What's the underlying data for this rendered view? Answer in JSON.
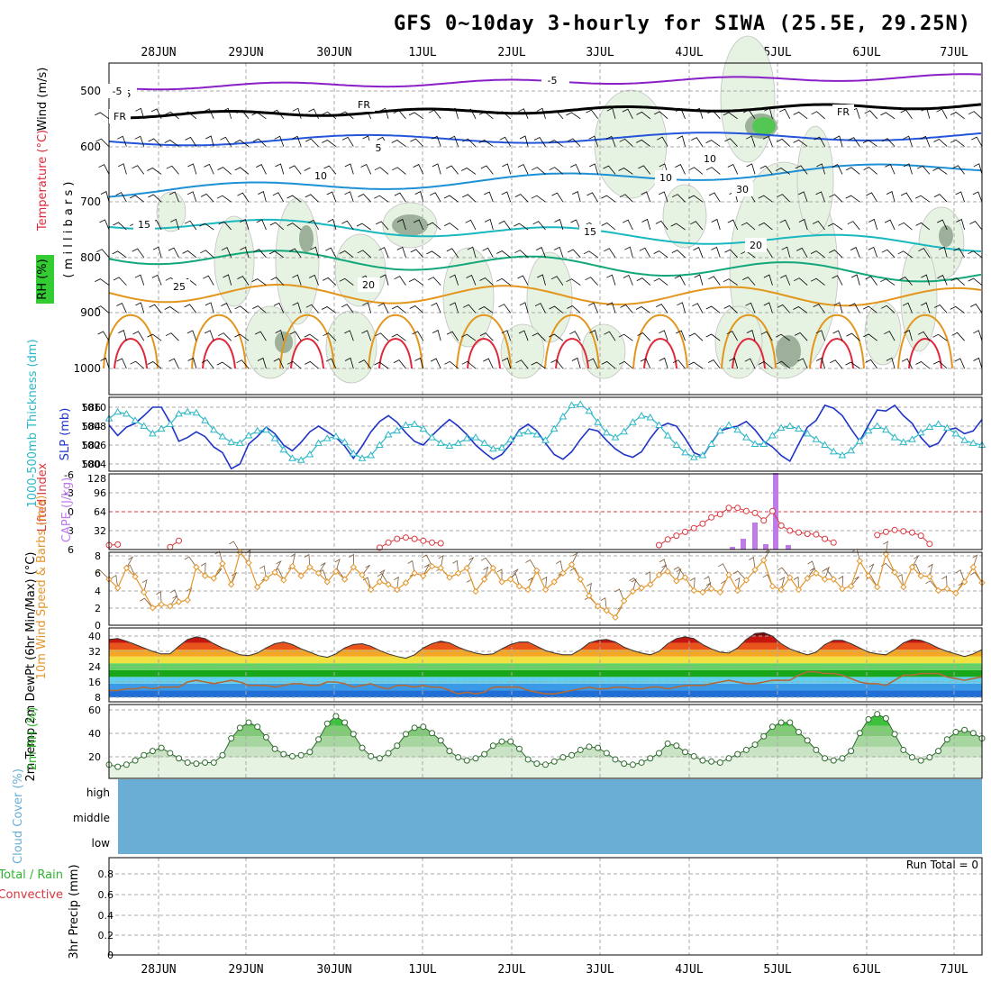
{
  "chart_data": {
    "type": "line",
    "title": "GFS 0~10day 3-hourly for SIWA (25.5E, 29.25N)",
    "dates": [
      "28JUN",
      "29JUN",
      "30JUN",
      "1JUL",
      "2JUL",
      "3JUL",
      "4JUL",
      "5JUL",
      "6JUL",
      "7JUL"
    ],
    "colors": {
      "grid": "#a9a9a9",
      "purple": "#8a1fc8",
      "freezing": "#000000",
      "blue": "#2255d9",
      "lightblue": "#1e90d6",
      "teal": "#19b8c0",
      "green": "#12a77a",
      "orange": "#e3961c",
      "red": "#e0283a",
      "rhfill": "#e6f2e2",
      "rhdark": "#5e7a5e",
      "slp": "#1f35c8",
      "thick": "#2bb7c6",
      "li": "#d9363e",
      "cape": "#bf7be8",
      "wind": "#e3962d",
      "cloud": "#6aaed6",
      "rh2m": "#2fb52f"
    },
    "panels": [
      {
        "name": "upper-air",
        "ylabels": [
          {
            "text": "Wind (m/s)",
            "color": "#000000"
          },
          {
            "text": "Temperature (°C)",
            "color": "#e0283a"
          },
          {
            "text": "RH (%)",
            "color": "#000000"
          },
          {
            "text": "( m i l l i b a r s )",
            "color": "#000000"
          }
        ],
        "yticks": [
          "500",
          "600",
          "700",
          "800",
          "900",
          "1000"
        ],
        "contour_labels": [
          "-5",
          "-5",
          "FR",
          "FR",
          "FR",
          "-5",
          "-5",
          "10",
          "10",
          "15",
          "15",
          "20",
          "25",
          "20",
          "30",
          "5",
          "10"
        ]
      },
      {
        "name": "slp-thickness",
        "ylabel_left": "1000-500mb Thickness (dm)",
        "ylabel_right": "SLP (mb)",
        "yticks_left": [
          "580",
          "582",
          "584",
          "586"
        ],
        "yticks_right": [
          "1004",
          "1006",
          "1008",
          "1010"
        ],
        "series": [
          {
            "name": "SLP",
            "values": [
              1008.1,
              1007.0,
              1007.9,
              1008.3,
              1009.1,
              1010.0,
              1010.0,
              1008.4,
              1006.4,
              1006.8,
              1007.4,
              1006.9,
              1005.8,
              1005.2,
              1003.5,
              1004.0,
              1006.1,
              1006.9,
              1007.9,
              1007.2,
              1006.0,
              1005.4,
              1006.3,
              1007.4,
              1008.0,
              1007.4,
              1006.8,
              1005.9,
              1004.6,
              1005.9,
              1007.4,
              1008.5,
              1009.1,
              1008.4,
              1007.3,
              1006.4,
              1006.0,
              1007.0,
              1007.9,
              1008.7,
              1008.0,
              1007.1,
              1006.0,
              1005.2,
              1004.5,
              1005.0,
              1006.1,
              1007.6,
              1008.2,
              1007.5,
              1006.2,
              1005.0,
              1004.5,
              1005.3,
              1006.6,
              1007.7,
              1007.5,
              1006.5,
              1005.6,
              1005.0,
              1004.7,
              1005.3,
              1006.7,
              1007.9,
              1008.3,
              1008.0,
              1006.7,
              1005.2,
              1004.8,
              1006.2,
              1007.5,
              1007.8,
              1008.0,
              1008.5,
              1007.6,
              1006.4,
              1005.8,
              1004.9,
              1004.3,
              1006.1,
              1007.9,
              1008.6,
              1010.2,
              1009.9,
              1009.1,
              1007.7,
              1006.4,
              1008.1,
              1009.7,
              1009.6,
              1010.2,
              1009.1,
              1008.3,
              1006.8,
              1005.8,
              1006.2,
              1007.6,
              1007.8,
              1007.2,
              1007.5,
              1008.7
            ]
          },
          {
            "name": "Thickness",
            "values": [
              584.8,
              585.5,
              585.3,
              584.6,
              584.0,
              583.2,
              583.7,
              584.2,
              585.3,
              585.5,
              585.4,
              584.6,
              583.6,
              582.9,
              582.3,
              582.2,
              583.0,
              583.5,
              583.6,
              582.7,
              581.5,
              580.6,
              580.4,
              581.0,
              582.2,
              582.7,
              582.9,
              582.3,
              581.1,
              580.6,
              580.9,
              582.0,
              583.1,
              583.5,
              584.1,
              584.2,
              583.7,
              582.8,
              582.2,
              581.9,
              582.2,
              582.7,
              582.8,
              582.2,
              581.6,
              581.7,
              582.6,
              583.2,
              583.4,
              583.1,
              582.5,
              583.7,
              585.0,
              586.2,
              586.3,
              585.6,
              584.4,
              583.3,
              582.8,
              583.4,
              584.4,
              585.1,
              584.9,
              584.1,
              583.0,
              582.0,
              581.2,
              580.7,
              580.9,
              582.1,
              583.5,
              584.1,
              583.6,
              582.8,
              582.1,
              582.1,
              583.0,
              583.8,
              584.0,
              583.7,
              583.2,
              582.6,
              582.0,
              581.3,
              580.9,
              581.4,
              582.4,
              583.5,
              584.0,
              583.6,
              582.8,
              582.3,
              582.6,
              583.3,
              583.9,
              584.2,
              583.8,
              583.2,
              582.5,
              582.2,
              582.0
            ]
          }
        ]
      },
      {
        "name": "li-cape",
        "ylabel_left": "Lifted Index",
        "ylabel_right": "CAPE (J/kg)",
        "yticks_left": [
          "-6",
          "-3",
          "0",
          "3",
          "6"
        ],
        "yticks_right": [
          "32",
          "64",
          "96",
          "128"
        ],
        "series": [
          {
            "name": "Lifted Index",
            "values": [
              5.3,
              5.2,
              null,
              null,
              null,
              null,
              null,
              5.6,
              4.6,
              null,
              null,
              null,
              null,
              null,
              null,
              null,
              null,
              null,
              null,
              null,
              null,
              null,
              null,
              null,
              null,
              null,
              null,
              null,
              null,
              null,
              null,
              5.7,
              4.9,
              4.3,
              4.1,
              4.3,
              4.6,
              4.9,
              5.0,
              null,
              null,
              null,
              null,
              null,
              null,
              null,
              null,
              null,
              null,
              null,
              null,
              null,
              null,
              null,
              null,
              null,
              null,
              null,
              null,
              null,
              null,
              null,
              null,
              5.3,
              4.4,
              3.8,
              3.2,
              2.6,
              1.9,
              0.9,
              0.4,
              -0.6,
              -0.6,
              -0.1,
              0.2,
              1.4,
              -0.1,
              2.2,
              3.0,
              3.3,
              3.5,
              3.6,
              4.3,
              4.9,
              null,
              null,
              null,
              null,
              3.7,
              3.2,
              2.9,
              3.1,
              3.3,
              3.8,
              5.1,
              null,
              null,
              null,
              null,
              null,
              null
            ]
          },
          {
            "name": "CAPE",
            "values": [
              0,
              0,
              0,
              0,
              0,
              0,
              0,
              0,
              0,
              0,
              0,
              0,
              0,
              0,
              0,
              0,
              0,
              0,
              0,
              0,
              0,
              0,
              0,
              0,
              0,
              0,
              0,
              0,
              0,
              0,
              0,
              0,
              0,
              0,
              0,
              0,
              0,
              0,
              0,
              0,
              0,
              0,
              0,
              0,
              0,
              0,
              0,
              0,
              0,
              0,
              0,
              0,
              0,
              0,
              0,
              0,
              0,
              0,
              0,
              0,
              0,
              0,
              0,
              0,
              0,
              0,
              0,
              0,
              0,
              0,
              0,
              0,
              0,
              0,
              0,
              0,
              0,
              0,
              0,
              0,
              0,
              0,
              0,
              0,
              0,
              0,
              0,
              0,
              0,
              0,
              0,
              0,
              0,
              0,
              0,
              0,
              0,
              0,
              0,
              0,
              0
            ]
          }
        ]
      },
      {
        "name": "wind10m",
        "ylabel": "10m Wind Speed & Barbs (m/s)",
        "yticks": [
          "0",
          "2",
          "4",
          "6",
          "8"
        ],
        "series": [
          {
            "name": "10m Wind Speed",
            "values": [
              5.3,
              4.3,
              6.6,
              5.6,
              3.8,
              2.0,
              2.4,
              2.2,
              2.7,
              2.9,
              6.7,
              5.7,
              5.4,
              7.1,
              4.7,
              8.4,
              7.2,
              4.4,
              5.4,
              6.1,
              5.2,
              6.8,
              5.7,
              6.7,
              6.0,
              5.0,
              6.2,
              5.3,
              6.7,
              5.8,
              4.1,
              5.0,
              4.7,
              4.1,
              4.9,
              6.0,
              5.7,
              6.8,
              6.6,
              5.5,
              6.0,
              6.6,
              3.9,
              5.3,
              6.6,
              5.0,
              5.3,
              4.5,
              4.1,
              6.3,
              4.1,
              5.0,
              6.0,
              7.0,
              5.3,
              3.4,
              2.2,
              1.7,
              0.9,
              2.8,
              3.9,
              4.3,
              4.7,
              5.8,
              6.2,
              5.1,
              5.5,
              4.0,
              3.8,
              4.2,
              3.8,
              5.8,
              4.0,
              5.2,
              6.4,
              7.5,
              4.5,
              4.1,
              5.5,
              4.1,
              5.4,
              6.0,
              5.3,
              5.3,
              4.2,
              4.5,
              7.4,
              5.7,
              4.4,
              8.2,
              6.1,
              4.4,
              6.7,
              5.7,
              5.6,
              4.0,
              4.2,
              3.7,
              5.0,
              6.7,
              4.9
            ]
          }
        ]
      },
      {
        "name": "temp2m",
        "ylabel": "2m Temp 2m DewPt (6hr Min/Max) (°C)",
        "yticks": [
          "8",
          "16",
          "24",
          "32",
          "40"
        ],
        "series": [
          {
            "name": "2m Temp",
            "values": [
              38,
              38.5,
              37,
              35,
              33,
              31,
              29.5,
              29.5,
              34,
              38,
              39.5,
              38.5,
              35.5,
              33,
              31,
              29,
              28.5,
              30,
              33,
              35.5,
              36.5,
              35,
              32.5,
              30.5,
              28.5,
              27.5,
              29.5,
              33,
              35,
              35.5,
              34,
              31.5,
              29.5,
              28,
              27,
              29,
              33,
              35.5,
              37,
              36,
              33.5,
              31.5,
              30,
              29,
              29.5,
              32.5,
              35,
              36.5,
              36.5,
              34,
              31.5,
              30,
              29,
              29,
              32,
              36,
              37.5,
              38,
              36.5,
              33.5,
              31.5,
              30,
              29,
              31,
              35.5,
              38.5,
              39.5,
              38.5,
              35,
              32.5,
              30.5,
              30,
              33,
              38,
              41.5,
              42,
              40,
              35.5,
              32.5,
              30.5,
              29,
              30.5,
              35,
              37.5,
              37.5,
              35.5,
              33,
              30.5,
              29.5,
              29,
              32,
              36,
              38,
              37.5,
              35.5,
              33,
              31,
              29.5,
              28,
              29.5,
              32
            ]
          },
          {
            "name": "2m DewPt",
            "values": [
              8,
              8,
              9,
              9,
              10,
              9,
              10,
              10,
              10,
              13,
              14,
              13,
              12,
              13,
              14,
              13,
              11,
              11,
              11,
              10,
              11,
              12,
              12,
              11,
              11,
              13,
              13,
              12,
              10,
              11,
              12,
              10,
              9,
              11,
              11,
              10,
              11,
              10,
              10,
              8,
              6,
              7,
              6,
              7,
              10,
              10,
              10,
              10,
              8,
              7,
              6,
              6,
              7,
              8,
              9,
              10,
              9,
              9,
              10,
              10,
              9,
              9,
              10,
              10,
              9,
              10,
              11,
              11,
              11,
              12,
              13,
              14,
              13,
              12,
              12,
              13,
              14,
              14,
              14,
              17,
              19,
              19,
              18,
              18,
              17,
              15,
              13,
              12,
              12,
              11,
              14,
              17,
              17,
              18,
              18,
              18,
              16,
              15,
              14,
              15,
              16
            ]
          }
        ]
      },
      {
        "name": "rh2m",
        "ylabel": "2m RH (%)",
        "yticks": [
          "20",
          "40",
          "60"
        ],
        "series": [
          {
            "name": "2m RH",
            "values": [
              13,
              11,
              13,
              17,
              22,
              26,
              29,
              24,
              19,
              15,
              14,
              15,
              15,
              22,
              38,
              48,
              53,
              49,
              39,
              28,
              23,
              21,
              22,
              25,
              37,
              52,
              59,
              53,
              42,
              29,
              21,
              19,
              24,
              31,
              42,
              48,
              49,
              43,
              36,
              26,
              20,
              17,
              19,
              23,
              31,
              35,
              35,
              28,
              18,
              14,
              13,
              16,
              20,
              22,
              27,
              30,
              29,
              24,
              18,
              14,
              13,
              15,
              19,
              24,
              33,
              31,
              25,
              21,
              17,
              16,
              15,
              19,
              23,
              27,
              32,
              40,
              49,
              53,
              53,
              44,
              36,
              27,
              19,
              17,
              19,
              26,
              43,
              56,
              61,
              57,
              42,
              27,
              20,
              17,
              20,
              26,
              37,
              44,
              46,
              43,
              38
            ]
          }
        ]
      },
      {
        "name": "cloud",
        "ylabel": "Cloud Cover (%)",
        "levels": [
          "high",
          "middle",
          "low"
        ]
      },
      {
        "name": "precip",
        "ylabel_left": "Total / Rain",
        "ylabel_left2": "Convective",
        "ylabel": "3hr Precip (mm)",
        "yticks": [
          "0",
          "0.2",
          "0.4",
          "0.6",
          "0.8"
        ],
        "run_total": "Run Total = 0"
      }
    ]
  }
}
